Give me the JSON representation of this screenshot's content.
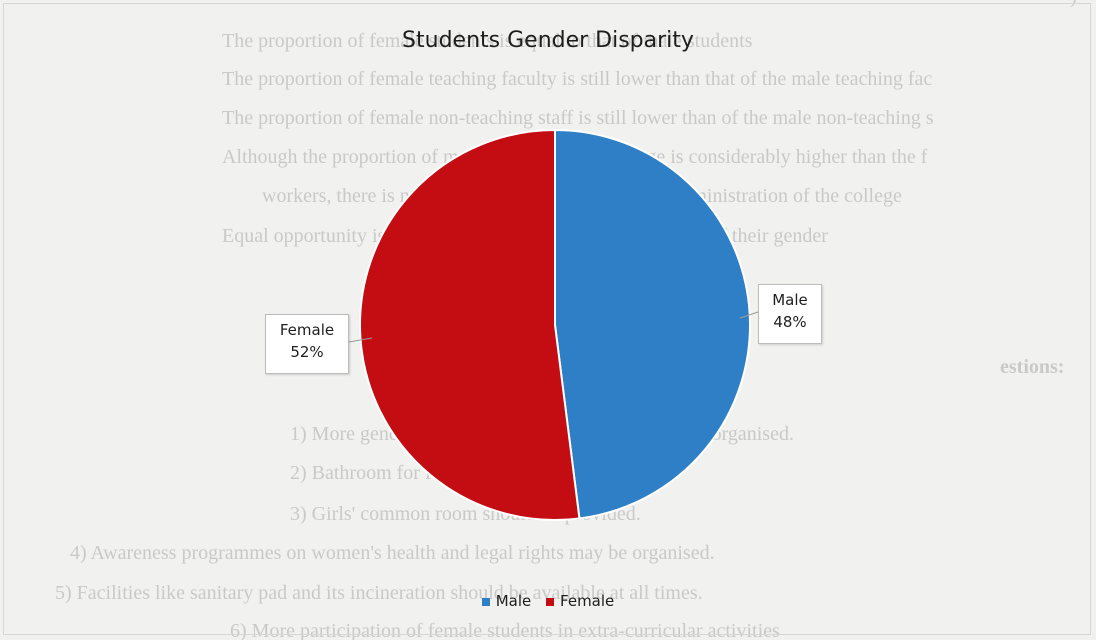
{
  "chart_data": {
    "type": "pie",
    "title": "Students Gender Disparity",
    "categories": [
      "Male",
      "Female"
    ],
    "values": [
      48,
      52
    ],
    "data_labels": [
      "48%",
      "52%"
    ],
    "colors": [
      "#2e7fc6",
      "#c40d12"
    ],
    "legend_position": "bottom"
  },
  "background_text": [
    "The proportion of female students is equal to that of male students",
    "The proportion of female teaching faculty is still lower than that of the male teaching fac",
    "The proportion of female non-teaching staff is still lower than of the male non-teaching s",
    "Although the proportion of male students in the college is considerably higher than the f",
    "workers, there is no gender bias in the running and administration of the college",
    "Equal opportunity is provided to all the students irrespective of their gender",
    "estions:",
    "1)  More gender sensitization programmes should be organised.",
    "2)  Bathroom for female students be provided.",
    "3)  Girls' common room should be provided.",
    "4)  Awareness programmes on women's health and legal rights may be organised.",
    "5)  Facilities like sanitary pad and its incineration should be available at all times.",
    "6)  More participation of female students in extra-curricular activities"
  ]
}
